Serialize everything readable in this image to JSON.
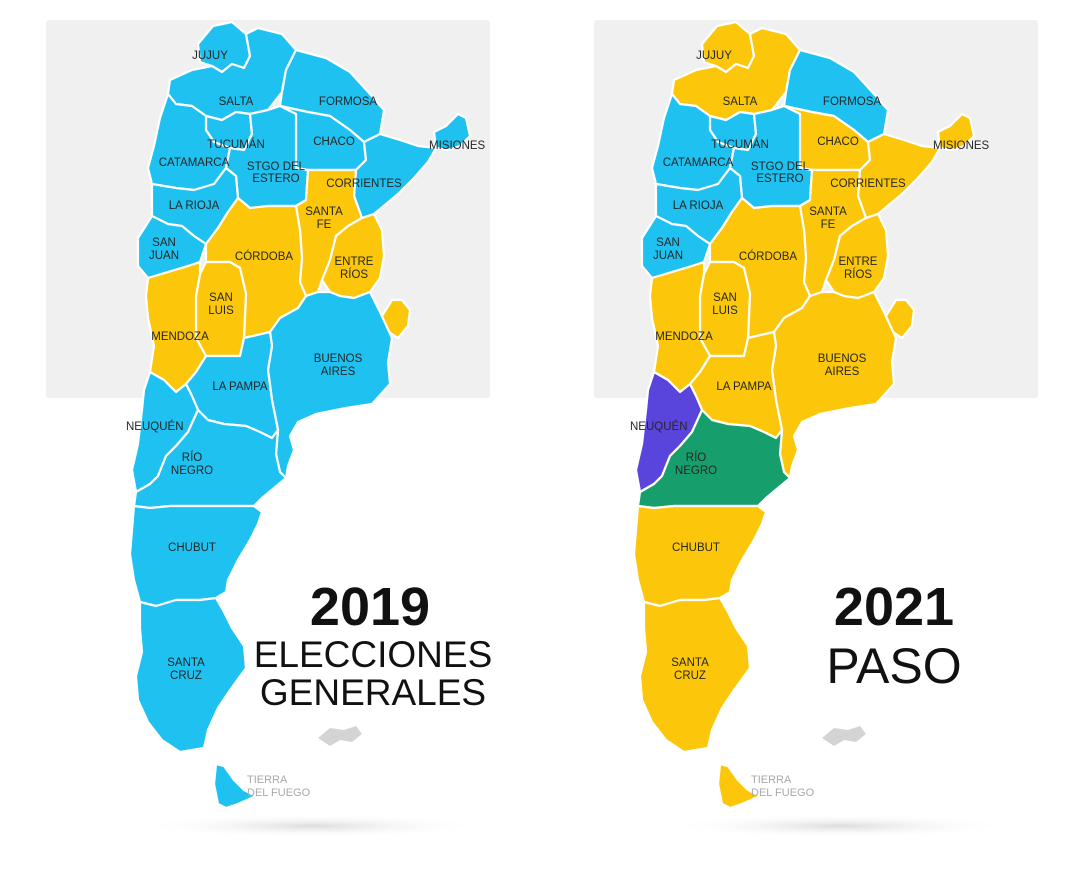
{
  "colors": {
    "blue": "#1ec1f0",
    "yellow": "#fcc70a",
    "purple": "#5a45dc",
    "green": "#169f6c",
    "panel_bg": "#f0f0f0",
    "border": "#ffffff"
  },
  "labels": {
    "jujuy": "JUJUY",
    "salta": "SALTA",
    "formosa": "FORMOSA",
    "chaco": "CHACO",
    "misiones": "MISIONES",
    "tucuman": "TUCUMÁN",
    "catamarca": "CATAMARCA",
    "santiago_1": "STGO DEL",
    "santiago_2": "ESTERO",
    "corrientes": "CORRIENTES",
    "la_rioja": "LA RIOJA",
    "santa_fe_1": "SANTA",
    "santa_fe_2": "FE",
    "san_juan_1": "SAN",
    "san_juan_2": "JUAN",
    "cordoba": "CÓRDOBA",
    "entre_rios_1": "ENTRE",
    "entre_rios_2": "RÍOS",
    "san_luis_1": "SAN",
    "san_luis_2": "LUIS",
    "mendoza": "MENDOZA",
    "buenos_aires_1": "BUENOS",
    "buenos_aires_2": "AIRES",
    "la_pampa": "LA PAMPA",
    "neuquen": "NEUQUÉN",
    "rio_negro_1": "RÍO",
    "rio_negro_2": "NEGRO",
    "chubut": "CHUBUT",
    "santa_cruz_1": "SANTA",
    "santa_cruz_2": "CRUZ",
    "tierra_del_fuego_1": "TIERRA",
    "tierra_del_fuego_2": "DEL FUEGO"
  },
  "maps": [
    {
      "year": "2019",
      "subtitle_lines": [
        "ELECCIONES",
        "GENERALES"
      ],
      "province_colors": {
        "jujuy": "blue",
        "salta": "blue",
        "formosa": "blue",
        "chaco": "blue",
        "misiones": "blue",
        "tucuman": "blue",
        "catamarca": "blue",
        "santiago": "blue",
        "corrientes": "blue",
        "la_rioja": "blue",
        "san_juan": "blue",
        "santa_fe": "yellow",
        "cordoba": "yellow",
        "entre_rios": "yellow",
        "san_luis": "yellow",
        "mendoza": "yellow",
        "buenos_aires": "blue",
        "caba": "yellow",
        "la_pampa": "blue",
        "neuquen": "blue",
        "rio_negro": "blue",
        "chubut": "blue",
        "santa_cruz": "blue",
        "tierra_del_fuego": "blue"
      }
    },
    {
      "year": "2021",
      "subtitle_lines": [
        "PASO"
      ],
      "province_colors": {
        "jujuy": "yellow",
        "salta": "yellow",
        "formosa": "blue",
        "chaco": "yellow",
        "misiones": "yellow",
        "tucuman": "blue",
        "catamarca": "blue",
        "santiago": "blue",
        "corrientes": "yellow",
        "la_rioja": "blue",
        "san_juan": "blue",
        "santa_fe": "yellow",
        "cordoba": "yellow",
        "entre_rios": "yellow",
        "san_luis": "yellow",
        "mendoza": "yellow",
        "buenos_aires": "yellow",
        "caba": "yellow",
        "la_pampa": "yellow",
        "neuquen": "purple",
        "rio_negro": "green",
        "chubut": "yellow",
        "santa_cruz": "yellow",
        "tierra_del_fuego": "yellow"
      }
    }
  ]
}
